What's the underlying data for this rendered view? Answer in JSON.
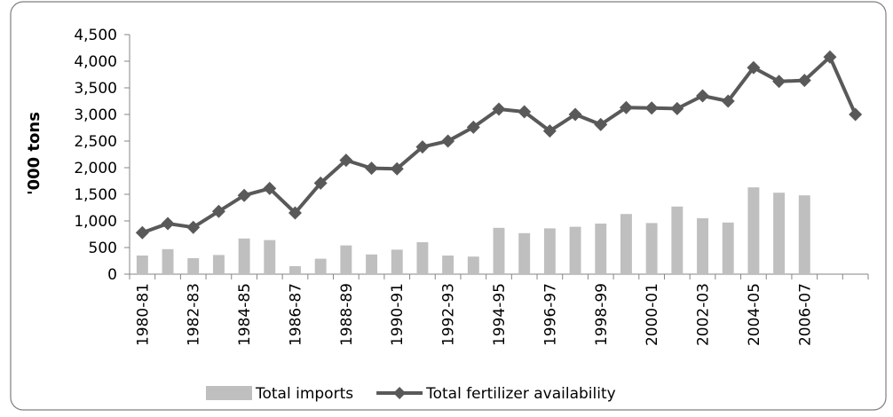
{
  "chart_data": {
    "type": "bar-line",
    "y_label": "'000 tons",
    "categories": [
      "1980-81",
      null,
      "1982-83",
      null,
      "1984-85",
      null,
      "1986-87",
      null,
      "1988-89",
      null,
      "1990-91",
      null,
      "1992-93",
      null,
      "1994-95",
      null,
      "1996-97",
      null,
      "1998-99",
      null,
      "2000-01",
      null,
      "2002-03",
      null,
      "2004-05",
      null,
      "2006-07",
      null,
      null
    ],
    "series": [
      {
        "name": "Total imports",
        "type": "bar",
        "color": "#bfbfbf",
        "values": [
          350,
          470,
          300,
          360,
          670,
          640,
          150,
          290,
          540,
          370,
          460,
          600,
          350,
          330,
          870,
          770,
          860,
          890,
          950,
          1130,
          960,
          1270,
          1050,
          970,
          1630,
          1530,
          1480,
          null,
          null
        ]
      },
      {
        "name": "Total fertilizer availability",
        "type": "line",
        "color": "#595959",
        "values": [
          780,
          950,
          880,
          1180,
          1480,
          1610,
          1150,
          1710,
          2140,
          1990,
          1980,
          2390,
          2500,
          2760,
          3100,
          3050,
          2690,
          3000,
          2810,
          3130,
          3120,
          3110,
          3350,
          3250,
          3880,
          3620,
          3640,
          4080,
          3000
        ]
      }
    ],
    "ylim": [
      0,
      4500
    ],
    "yticks": [
      0,
      500,
      {
        "value": 1000,
        "label": "1,000"
      },
      {
        "value": 1500,
        "label": "1,500"
      },
      {
        "value": 2000,
        "label": "2,000"
      },
      {
        "value": 2500,
        "label": "2,500"
      },
      {
        "value": 3000,
        "label": "3,000"
      },
      {
        "value": 3500,
        "label": "3,500"
      },
      {
        "value": 4000,
        "label": "4,000"
      },
      {
        "value": 4500,
        "label": "4,500"
      }
    ],
    "grid": false,
    "legend": "bottom"
  }
}
